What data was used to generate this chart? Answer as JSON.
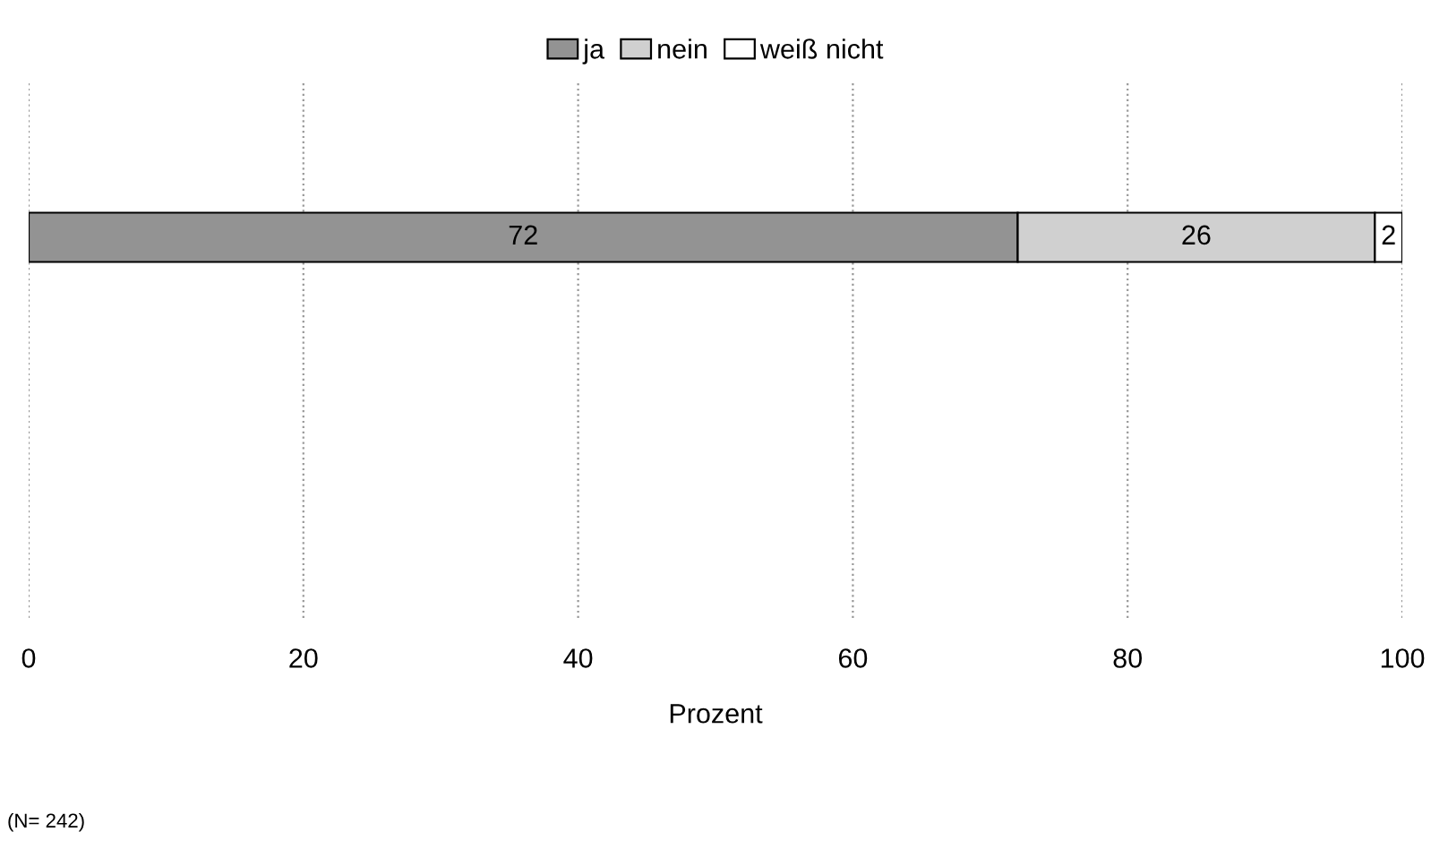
{
  "chart_data": {
    "type": "bar",
    "orientation": "horizontal",
    "stacked": true,
    "categories": [
      null
    ],
    "series": [
      {
        "name": "ja",
        "color": "#939393",
        "values": [
          72
        ]
      },
      {
        "name": "nein",
        "color": "#d0d0d0",
        "values": [
          26
        ]
      },
      {
        "name": "weiß nicht",
        "color": "#ffffff",
        "values": [
          2
        ]
      }
    ],
    "xlim": [
      0,
      100
    ],
    "xticks": [
      0,
      20,
      40,
      60,
      80,
      100
    ],
    "xlabel": "Prozent",
    "grid": "x",
    "legend": "top",
    "data_labels": true,
    "annotations": [
      "(N= 242)"
    ]
  }
}
